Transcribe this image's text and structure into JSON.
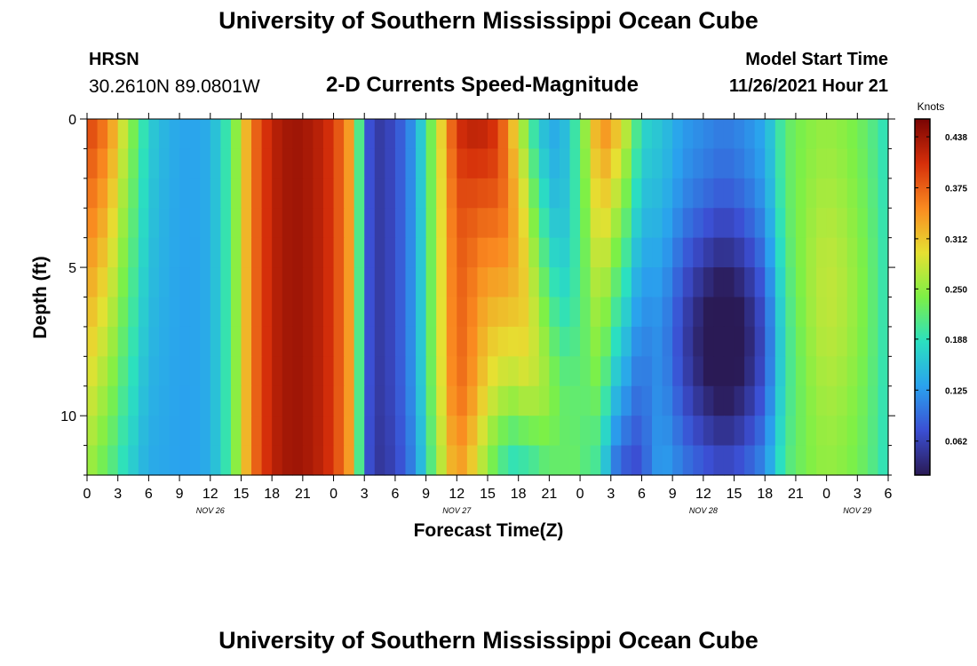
{
  "header": {
    "title": "University of Southern Mississippi Ocean Cube",
    "station": "HRSN",
    "coordinates": "30.2610N  89.0801W",
    "subtitle": "2-D Currents Speed-Magnitude",
    "model_start_label": "Model Start Time",
    "model_start_value": "11/26/2021 Hour 21"
  },
  "footer": {
    "title": "University of Southern Mississippi Ocean Cube"
  },
  "chart_data": {
    "type": "heatmap",
    "title": "2-D Currents Speed-Magnitude",
    "xlabel": "Forecast Time(Z)",
    "ylabel": "Depth (ft)",
    "x_range_hours": [
      0,
      78
    ],
    "y_range_ft": [
      0,
      12
    ],
    "x_ticks": [
      "0",
      "3",
      "6",
      "9",
      "12",
      "15",
      "18",
      "21",
      "0",
      "3",
      "6",
      "9",
      "12",
      "15",
      "18",
      "21",
      "0",
      "3",
      "6",
      "9",
      "12",
      "15",
      "18",
      "21",
      "0",
      "3",
      "6"
    ],
    "y_ticks": [
      "0",
      "5",
      "10"
    ],
    "y_tick_values": [
      0,
      5,
      10
    ],
    "date_labels": [
      {
        "label": "NOV 26",
        "hour": 12
      },
      {
        "label": "NOV 27",
        "hour": 36
      },
      {
        "label": "NOV 28",
        "hour": 60
      },
      {
        "label": "NOV 29",
        "hour": 75
      }
    ],
    "colorbar": {
      "unit": "Knots",
      "range": [
        0.02,
        0.46
      ],
      "ticks": [
        "0.438",
        "0.375",
        "0.312",
        "0.250",
        "0.188",
        "0.125",
        "0.062"
      ],
      "tick_values": [
        0.438,
        0.375,
        0.312,
        0.25,
        0.188,
        0.125,
        0.062
      ],
      "colors": [
        "#2a1a55",
        "#3b4fd3",
        "#2aa2ee",
        "#2be0c0",
        "#7df046",
        "#e6e032",
        "#fa8a20",
        "#d52f0a",
        "#7a0403"
      ]
    },
    "surface_speed_profile": {
      "description": "approximate speed (knots) near surface vs forecast hour",
      "hours": [
        0,
        2,
        4,
        6,
        8,
        10,
        12,
        14,
        16,
        18,
        20,
        22,
        24,
        26,
        27,
        28,
        30,
        32,
        34,
        36,
        38,
        40,
        42,
        44,
        46,
        48,
        50,
        52,
        54,
        56,
        58,
        60,
        62,
        64,
        66,
        68,
        70,
        72,
        74,
        76,
        78
      ],
      "knots": [
        0.4,
        0.36,
        0.26,
        0.17,
        0.14,
        0.13,
        0.14,
        0.21,
        0.36,
        0.42,
        0.44,
        0.43,
        0.4,
        0.32,
        0.1,
        0.05,
        0.07,
        0.13,
        0.27,
        0.41,
        0.43,
        0.4,
        0.28,
        0.16,
        0.13,
        0.22,
        0.36,
        0.31,
        0.18,
        0.16,
        0.13,
        0.12,
        0.11,
        0.12,
        0.14,
        0.22,
        0.24,
        0.25,
        0.24,
        0.22,
        0.18
      ]
    }
  }
}
